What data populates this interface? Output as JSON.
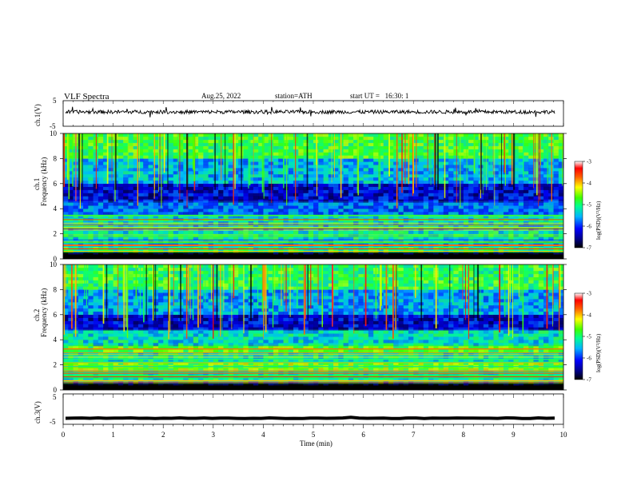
{
  "header": {
    "title": "VLF Spectra",
    "date": "Aug.25, 2022",
    "station": "station=ATH",
    "start": "start UT =   16:30: 1"
  },
  "chart_data": [
    {
      "type": "line",
      "name": "ch1-waveform",
      "ylabel": "ch.1(V)",
      "ylim": [
        -5,
        5
      ],
      "yticks": [
        "5",
        "-5"
      ],
      "xlim": [
        0,
        10
      ],
      "trace_level": 0.6,
      "trace_spread": 1.4
    },
    {
      "type": "heatmap",
      "name": "ch1-spectrogram",
      "ylabel": "ch.1\nFrequency (kHz)",
      "ylim": [
        0,
        10
      ],
      "yticks": [
        "0",
        "2",
        "4",
        "6",
        "8",
        "10"
      ],
      "xlim": [
        0,
        10
      ],
      "colorbar": {
        "label": "log(PSD)(V²/Hz)",
        "ticks": [
          "-3",
          "-4",
          "-5",
          "-6",
          "-7"
        ],
        "range": [
          -7,
          -3
        ]
      },
      "bands": [
        {
          "from": 0.0,
          "to": 0.6,
          "level": -7.0
        },
        {
          "from": 0.6,
          "to": 1.0,
          "level": -5.0
        },
        {
          "from": 1.0,
          "to": 1.6,
          "level": -5.8
        },
        {
          "from": 1.6,
          "to": 2.2,
          "level": -5.2
        },
        {
          "from": 2.2,
          "to": 2.6,
          "level": -5.6
        },
        {
          "from": 2.6,
          "to": 3.4,
          "level": -5.3
        },
        {
          "from": 3.4,
          "to": 4.6,
          "level": -5.8
        },
        {
          "from": 4.6,
          "to": 6.0,
          "level": -6.3
        },
        {
          "from": 6.0,
          "to": 8.0,
          "level": -5.5
        },
        {
          "from": 8.0,
          "to": 10.0,
          "level": -4.8
        }
      ]
    },
    {
      "type": "heatmap",
      "name": "ch2-spectrogram",
      "ylabel": "ch.2\nFrequency (kHz)",
      "ylim": [
        0,
        10
      ],
      "yticks": [
        "0",
        "2",
        "4",
        "6",
        "8",
        "10"
      ],
      "xlim": [
        0,
        10
      ],
      "colorbar": {
        "label": "log(PSD)(V²/Hz)",
        "ticks": [
          "-3",
          "-4",
          "-5",
          "-6",
          "-7"
        ],
        "range": [
          -7,
          -3
        ]
      },
      "bands": [
        {
          "from": 0.0,
          "to": 0.6,
          "level": -7.0
        },
        {
          "from": 0.6,
          "to": 1.6,
          "level": -5.2
        },
        {
          "from": 1.6,
          "to": 2.2,
          "level": -4.6
        },
        {
          "from": 2.2,
          "to": 3.0,
          "level": -5.2
        },
        {
          "from": 3.0,
          "to": 3.6,
          "level": -4.7
        },
        {
          "from": 3.6,
          "to": 4.8,
          "level": -5.3
        },
        {
          "from": 4.8,
          "to": 6.0,
          "level": -6.3
        },
        {
          "from": 6.0,
          "to": 8.0,
          "level": -5.6
        },
        {
          "from": 8.0,
          "to": 10.0,
          "level": -4.9
        }
      ]
    },
    {
      "type": "line",
      "name": "ch3-waveform",
      "ylabel": "ch.3(V)",
      "ylim": [
        -5,
        5
      ],
      "yticks": [
        "5",
        "-5"
      ],
      "xlim": [
        0,
        10
      ],
      "xlabel": "Time (min)",
      "xticks": [
        "0",
        "1",
        "2",
        "3",
        "4",
        "5",
        "6",
        "7",
        "8",
        "9",
        "10"
      ],
      "trace_level": -3.0,
      "trace_spread": 0.2
    }
  ]
}
